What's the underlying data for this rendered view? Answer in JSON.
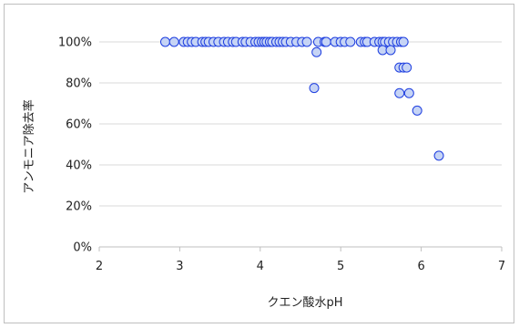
{
  "chart_data": {
    "type": "scatter",
    "xlabel": "クエン酸水pH",
    "ylabel": "アンモニア除去率",
    "xlim": [
      2,
      7
    ],
    "ylim": [
      0,
      1
    ],
    "x_ticks": [
      "2",
      "3",
      "4",
      "5",
      "6",
      "7"
    ],
    "y_ticks": [
      "0%",
      "20%",
      "40%",
      "60%",
      "80%",
      "100%"
    ],
    "grid": "horizontal",
    "legend": "none",
    "marker_fill": "#c6d4f5",
    "marker_stroke": "#1f3fe0",
    "points": [
      [
        2.82,
        1.0
      ],
      [
        2.93,
        1.0
      ],
      [
        3.05,
        1.0
      ],
      [
        3.1,
        1.0
      ],
      [
        3.15,
        1.0
      ],
      [
        3.2,
        1.0
      ],
      [
        3.28,
        1.0
      ],
      [
        3.32,
        1.0
      ],
      [
        3.36,
        1.0
      ],
      [
        3.42,
        1.0
      ],
      [
        3.48,
        1.0
      ],
      [
        3.55,
        1.0
      ],
      [
        3.6,
        1.0
      ],
      [
        3.66,
        1.0
      ],
      [
        3.7,
        1.0
      ],
      [
        3.78,
        1.0
      ],
      [
        3.82,
        1.0
      ],
      [
        3.88,
        1.0
      ],
      [
        3.94,
        1.0
      ],
      [
        3.98,
        1.0
      ],
      [
        4.02,
        1.0
      ],
      [
        4.05,
        1.0
      ],
      [
        4.08,
        1.0
      ],
      [
        4.12,
        1.0
      ],
      [
        4.15,
        1.0
      ],
      [
        4.2,
        1.0
      ],
      [
        4.24,
        1.0
      ],
      [
        4.28,
        1.0
      ],
      [
        4.32,
        1.0
      ],
      [
        4.38,
        1.0
      ],
      [
        4.45,
        1.0
      ],
      [
        4.52,
        1.0
      ],
      [
        4.58,
        1.0
      ],
      [
        4.72,
        1.0
      ],
      [
        4.8,
        1.0
      ],
      [
        4.82,
        1.0
      ],
      [
        4.93,
        1.0
      ],
      [
        5.0,
        1.0
      ],
      [
        5.05,
        1.0
      ],
      [
        5.12,
        1.0
      ],
      [
        5.25,
        1.0
      ],
      [
        5.3,
        1.0
      ],
      [
        5.33,
        1.0
      ],
      [
        5.42,
        1.0
      ],
      [
        5.48,
        1.0
      ],
      [
        5.52,
        1.0
      ],
      [
        5.55,
        1.0
      ],
      [
        5.6,
        1.0
      ],
      [
        5.65,
        1.0
      ],
      [
        5.7,
        1.0
      ],
      [
        5.75,
        1.0
      ],
      [
        5.78,
        1.0
      ],
      [
        5.52,
        0.96
      ],
      [
        5.62,
        0.96
      ],
      [
        4.7,
        0.95
      ],
      [
        5.73,
        0.875
      ],
      [
        5.78,
        0.875
      ],
      [
        5.82,
        0.875
      ],
      [
        4.67,
        0.775
      ],
      [
        5.73,
        0.75
      ],
      [
        5.85,
        0.75
      ],
      [
        5.95,
        0.665
      ],
      [
        6.22,
        0.445
      ]
    ]
  }
}
